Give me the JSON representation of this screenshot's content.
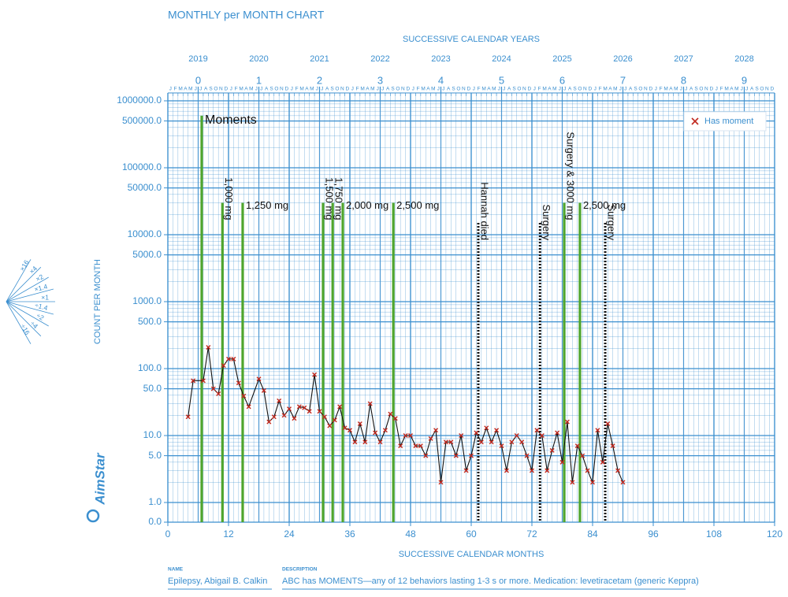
{
  "chart_data": {
    "type": "line",
    "title": "MONTHLY per MONTH CHART",
    "top_axis_title": "SUCCESSIVE CALENDAR YEARS",
    "years": [
      "2019",
      "2020",
      "2021",
      "2022",
      "2023",
      "2024",
      "2025",
      "2026",
      "2027",
      "2028"
    ],
    "year_numbers": [
      0,
      1,
      2,
      3,
      4,
      5,
      6,
      7,
      8,
      9
    ],
    "month_initials": [
      "J",
      "F",
      "M",
      "A",
      "M",
      "J",
      "J",
      "A",
      "S",
      "O",
      "N",
      "D"
    ],
    "x_label": "SUCCESSIVE CALENDAR MONTHS",
    "y_label": "COUNT PER MONTH",
    "xlim": [
      0,
      120
    ],
    "xticks": [
      0,
      12,
      24,
      36,
      48,
      60,
      72,
      84,
      96,
      108,
      120
    ],
    "ylim": [
      1,
      1000000
    ],
    "log_scale": true,
    "grid": true,
    "yticks": [
      {
        "value": 1000000,
        "label": "1000000.0"
      },
      {
        "value": 500000,
        "label": "500000.0"
      },
      {
        "value": 100000,
        "label": "100000.0"
      },
      {
        "value": 50000,
        "label": "50000.0"
      },
      {
        "value": 10000,
        "label": "10000.0"
      },
      {
        "value": 5000,
        "label": "5000.0"
      },
      {
        "value": 1000,
        "label": "1000.0"
      },
      {
        "value": 500,
        "label": "500.0"
      },
      {
        "value": 100,
        "label": "100.0"
      },
      {
        "value": 50,
        "label": "50.0"
      },
      {
        "value": 10,
        "label": "10.0"
      },
      {
        "value": 5,
        "label": "5.0"
      },
      {
        "value": 1,
        "label": "1.0"
      },
      {
        "value": 0,
        "label": "0.0"
      }
    ],
    "legend_position": "upper right",
    "series": [
      {
        "name": "Has moment",
        "color": "#c0281e",
        "line_color": "#111111",
        "x": [
          4,
          5,
          7,
          8,
          9,
          10,
          11,
          12,
          13,
          14,
          15,
          16,
          18,
          19,
          20,
          21,
          22,
          23,
          24,
          25,
          26,
          27,
          28,
          29,
          30,
          31,
          32,
          33,
          34,
          35,
          36,
          37,
          38,
          39,
          40,
          41,
          42,
          43,
          44,
          45,
          46,
          47,
          48,
          49,
          50,
          51,
          52,
          53,
          54,
          55,
          56,
          57,
          58,
          59,
          60,
          61,
          62,
          63,
          64,
          65,
          66,
          67,
          68,
          69,
          70,
          71,
          72,
          73,
          74,
          75,
          76,
          77,
          78,
          79,
          80,
          81,
          82,
          83,
          84,
          85,
          86,
          87,
          88,
          89,
          90
        ],
        "values": [
          19,
          66,
          66,
          208,
          50,
          42,
          111,
          139,
          139,
          61,
          39,
          27,
          70,
          47,
          16,
          19,
          33,
          20,
          25,
          18,
          27,
          26,
          23,
          81,
          23,
          19,
          14,
          17,
          27,
          13,
          12,
          8,
          15,
          8,
          30,
          11,
          8,
          12,
          21,
          18,
          7,
          10,
          10,
          7,
          7,
          5,
          9,
          12,
          2,
          8,
          8,
          5,
          10,
          3,
          5,
          11,
          8,
          13,
          8,
          12,
          7,
          3,
          8,
          10,
          8,
          5,
          3,
          12,
          10,
          3,
          6,
          11,
          4,
          16,
          2,
          7,
          5,
          3,
          2,
          12,
          4,
          15,
          7,
          3,
          2
        ]
      }
    ],
    "annotations": [
      {
        "x": 6.7,
        "y": 600000,
        "text": "Moments",
        "color": "#4fa52e",
        "line": "solid",
        "vertical": false
      },
      {
        "x": 10.8,
        "y": 30000,
        "text": "1,000 mg",
        "color": "#4fa52e",
        "line": "solid",
        "vertical": true
      },
      {
        "x": 14.8,
        "y": 30000,
        "text": "1,250 mg",
        "color": "#4fa52e",
        "line": "solid",
        "vertical": false
      },
      {
        "x": 30.7,
        "y": 30000,
        "text": "1,500 mg",
        "color": "#4fa52e",
        "line": "solid",
        "vertical": true
      },
      {
        "x": 32.6,
        "y": 30000,
        "text": "1,750 mg",
        "color": "#4fa52e",
        "line": "solid",
        "vertical": true
      },
      {
        "x": 34.6,
        "y": 30000,
        "text": "2,000 mg",
        "color": "#4fa52e",
        "line": "solid",
        "vertical": false
      },
      {
        "x": 44.6,
        "y": 30000,
        "text": "2,500 mg",
        "color": "#4fa52e",
        "line": "solid",
        "vertical": false
      },
      {
        "x": 61.4,
        "y": 15000,
        "text": "Hannah died",
        "color": "#111111",
        "line": "dotted",
        "vertical": true
      },
      {
        "x": 73.6,
        "y": 15000,
        "text": "Surgery",
        "color": "#111111",
        "line": "dotted",
        "vertical": true
      },
      {
        "x": 78.4,
        "y": 30000,
        "text": "Surgery & 3000 mg",
        "color": "#4fa52e",
        "line": "solid",
        "vertical": true
      },
      {
        "x": 81.5,
        "y": 30000,
        "text": "2,500 mg",
        "color": "#4fa52e",
        "line": "solid",
        "vertical": false
      },
      {
        "x": 86.5,
        "y": 15000,
        "text": "Surgery",
        "color": "#111111",
        "line": "dotted",
        "vertical": true
      }
    ],
    "celeration_fan": [
      "×16",
      "×4",
      "×2",
      "×1.4",
      "×1",
      "÷1.4",
      "÷2",
      "÷4",
      "÷16"
    ],
    "brand": "AimStar",
    "footer": {
      "name_label": "NAME",
      "name": "Epilepsy, Abigail B. Calkin",
      "description_label": "DESCRIPTION",
      "description": "ABC has MOMENTS—any of 12 behaviors lasting 1-3 s or more. Medication: levetiracetam (generic Keppra)"
    }
  }
}
